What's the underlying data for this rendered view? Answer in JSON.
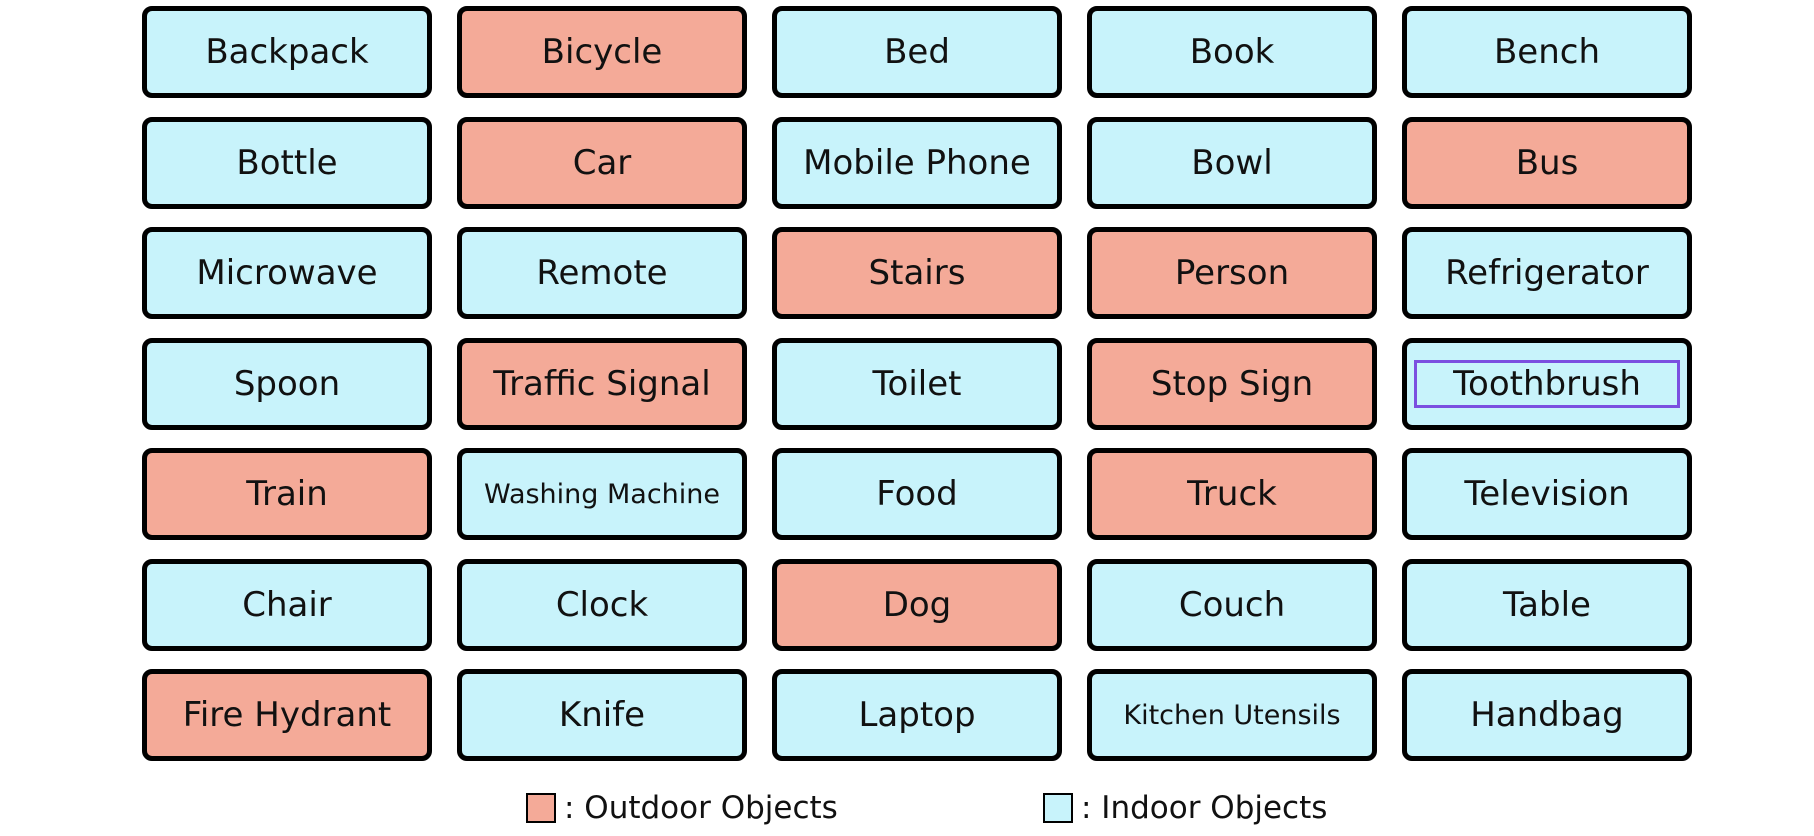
{
  "colors": {
    "outdoor": "#f4aa98",
    "indoor": "#c8f3fb",
    "selection": "#7b4fe0"
  },
  "cells": [
    {
      "label": "Backpack",
      "category": "indoor"
    },
    {
      "label": "Bicycle",
      "category": "outdoor"
    },
    {
      "label": "Bed",
      "category": "indoor"
    },
    {
      "label": "Book",
      "category": "indoor"
    },
    {
      "label": "Bench",
      "category": "indoor"
    },
    {
      "label": "Bottle",
      "category": "indoor"
    },
    {
      "label": "Car",
      "category": "outdoor"
    },
    {
      "label": "Mobile Phone",
      "category": "indoor"
    },
    {
      "label": "Bowl",
      "category": "indoor"
    },
    {
      "label": "Bus",
      "category": "outdoor"
    },
    {
      "label": "Microwave",
      "category": "indoor"
    },
    {
      "label": "Remote",
      "category": "indoor"
    },
    {
      "label": "Stairs",
      "category": "outdoor"
    },
    {
      "label": "Person",
      "category": "outdoor"
    },
    {
      "label": "Refrigerator",
      "category": "indoor"
    },
    {
      "label": "Spoon",
      "category": "indoor"
    },
    {
      "label": "Traffic Signal",
      "category": "outdoor"
    },
    {
      "label": "Toilet",
      "category": "indoor"
    },
    {
      "label": "Stop Sign",
      "category": "outdoor"
    },
    {
      "label": "Toothbrush",
      "category": "indoor",
      "selected": true
    },
    {
      "label": "Train",
      "category": "outdoor"
    },
    {
      "label": "Washing Machine",
      "category": "indoor",
      "small": true
    },
    {
      "label": "Food",
      "category": "indoor"
    },
    {
      "label": "Truck",
      "category": "outdoor"
    },
    {
      "label": "Television",
      "category": "indoor"
    },
    {
      "label": "Chair",
      "category": "indoor"
    },
    {
      "label": "Clock",
      "category": "indoor"
    },
    {
      "label": "Dog",
      "category": "outdoor"
    },
    {
      "label": "Couch",
      "category": "indoor"
    },
    {
      "label": "Table",
      "category": "indoor"
    },
    {
      "label": "Fire Hydrant",
      "category": "outdoor"
    },
    {
      "label": "Knife",
      "category": "indoor"
    },
    {
      "label": "Laptop",
      "category": "indoor"
    },
    {
      "label": "Kitchen Utensils",
      "category": "indoor",
      "small": true
    },
    {
      "label": "Handbag",
      "category": "indoor"
    }
  ],
  "legend": {
    "outdoor_label": ": Outdoor Objects",
    "indoor_label": ": Indoor Objects"
  }
}
